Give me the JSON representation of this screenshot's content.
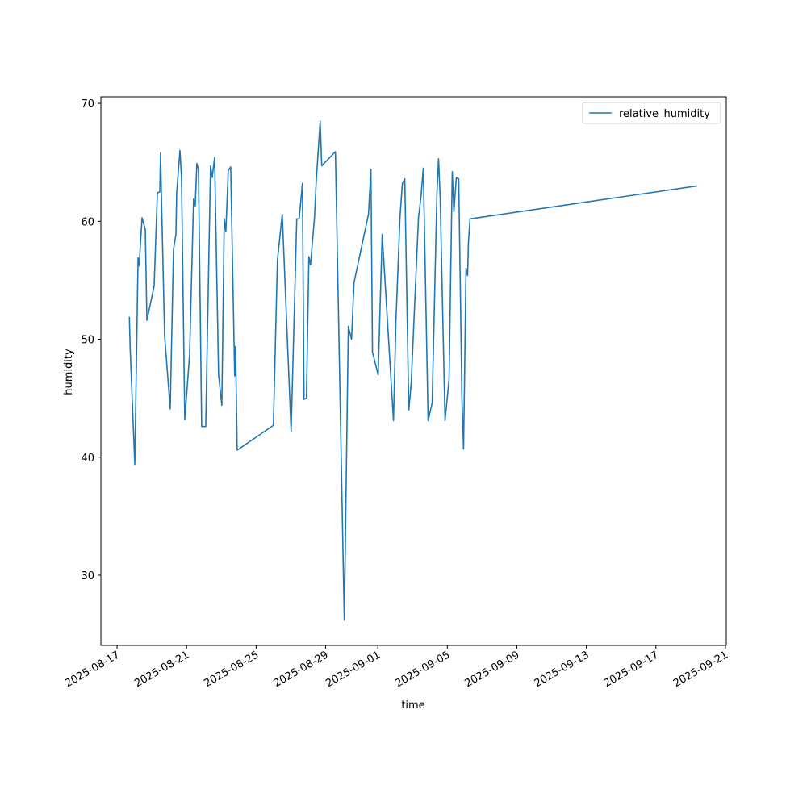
{
  "chart_data": {
    "type": "line",
    "xlabel": "time",
    "ylabel": "humidity",
    "x": [
      "2025-08-17T17:00",
      "2025-08-17T18:00",
      "2025-08-18T00:30",
      "2025-08-18T05:00",
      "2025-08-18T06:00",
      "2025-08-18T07:10",
      "2025-08-18T10:30",
      "2025-08-18T15:00",
      "2025-08-18T17:10",
      "2025-08-19T03:10",
      "2025-08-19T07:40",
      "2025-08-19T11:00",
      "2025-08-19T12:05",
      "2025-08-19T13:10",
      "2025-08-19T17:40",
      "2025-08-20T01:25",
      "2025-08-20T05:55",
      "2025-08-20T09:15",
      "2025-08-20T10:20",
      "2025-08-20T14:50",
      "2025-08-20T17:00",
      "2025-08-20T21:30",
      "2025-08-21T04:10",
      "2025-08-21T09:40",
      "2025-08-21T11:55",
      "2025-08-21T14:10",
      "2025-08-21T16:25",
      "2025-08-21T20:50",
      "2025-08-22T02:25",
      "2025-08-22T09:05",
      "2025-08-22T11:20",
      "2025-08-22T14:40",
      "2025-08-22T20:10",
      "2025-08-23T00:40",
      "2025-08-23T04:00",
      "2025-08-23T06:10",
      "2025-08-23T09:35",
      "2025-08-23T12:55",
      "2025-08-23T18:25",
      "2025-08-23T19:35",
      "2025-08-23T21:50",
      "2025-08-25T23:50",
      "2025-08-26T05:25",
      "2025-08-26T12:05",
      "2025-08-27T00:20",
      "2025-08-27T08:05",
      "2025-08-27T11:25",
      "2025-08-27T15:55",
      "2025-08-27T18:10",
      "2025-08-27T21:30",
      "2025-08-28T00:50",
      "2025-08-28T03:05",
      "2025-08-28T08:35",
      "2025-08-28T10:50",
      "2025-08-28T16:25",
      "2025-08-28T18:35",
      "2025-08-29T13:30",
      "2025-08-30T01:45",
      "2025-08-30T07:20",
      "2025-08-30T11:45",
      "2025-08-30T15:10",
      "2025-08-31T11:10",
      "2025-08-31T14:30",
      "2025-08-31T16:40",
      "2025-09-01T00:30",
      "2025-09-01T06:05",
      "2025-09-01T21:40",
      "2025-09-02T01:00",
      "2025-09-02T06:35",
      "2025-09-02T09:55",
      "2025-09-02T13:15",
      "2025-09-02T18:50",
      "2025-09-02T22:10",
      "2025-09-03T08:10",
      "2025-09-03T11:30",
      "2025-09-03T14:50",
      "2025-09-03T21:30",
      "2025-09-04T03:05",
      "2025-09-04T09:40",
      "2025-09-04T11:55",
      "2025-09-04T14:10",
      "2025-09-04T20:50",
      "2025-09-05T02:25",
      "2025-09-05T06:50",
      "2025-09-05T09:05",
      "2025-09-05T12:25",
      "2025-09-05T15:45",
      "2025-09-05T20:10",
      "2025-09-05T22:25",
      "2025-09-06T01:50",
      "2025-09-06T04:00",
      "2025-09-06T05:10",
      "2025-09-06T07:20",
      "2025-09-19T09:10"
    ],
    "series": [
      {
        "name": "relative_humidity",
        "color": "#1f77b4",
        "values": [
          51.9,
          49.4,
          39.4,
          56.9,
          56.2,
          56.9,
          60.3,
          59.3,
          51.6,
          54.5,
          62.4,
          62.5,
          65.8,
          62.4,
          50.3,
          44.1,
          57.6,
          58.9,
          62.4,
          66.0,
          63.7,
          43.2,
          48.7,
          61.9,
          61.3,
          64.9,
          64.4,
          42.6,
          42.6,
          64.7,
          63.7,
          65.4,
          47.0,
          44.4,
          60.2,
          59.1,
          64.3,
          64.6,
          46.9,
          49.4,
          40.6,
          42.7,
          56.7,
          60.6,
          42.2,
          60.2,
          60.2,
          63.2,
          44.9,
          45.0,
          57.0,
          56.3,
          60.3,
          63.2,
          68.5,
          64.7,
          65.9,
          26.2,
          51.1,
          50.0,
          54.8,
          60.6,
          64.4,
          48.9,
          47.0,
          58.9,
          43.1,
          51.5,
          60.3,
          63.2,
          63.6,
          44.0,
          46.3,
          60.3,
          62.0,
          64.5,
          43.1,
          44.6,
          62.4,
          65.3,
          62.0,
          43.1,
          46.6,
          64.2,
          60.8,
          63.7,
          63.6,
          45.0,
          40.7,
          56.0,
          55.4,
          58.2,
          60.2,
          63.0
        ]
      }
    ],
    "xlim": [
      "2025-08-16T01:40",
      "2025-09-21T01:10"
    ],
    "xticks": [
      "2025-08-17",
      "2025-08-21",
      "2025-08-25",
      "2025-08-29",
      "2025-09-01",
      "2025-09-05",
      "2025-09-09",
      "2025-09-13",
      "2025-09-17",
      "2025-09-21"
    ],
    "ylim": [
      24.05,
      70.55
    ],
    "yticks": [
      30,
      40,
      50,
      60,
      70
    ],
    "legend": "upper right"
  }
}
